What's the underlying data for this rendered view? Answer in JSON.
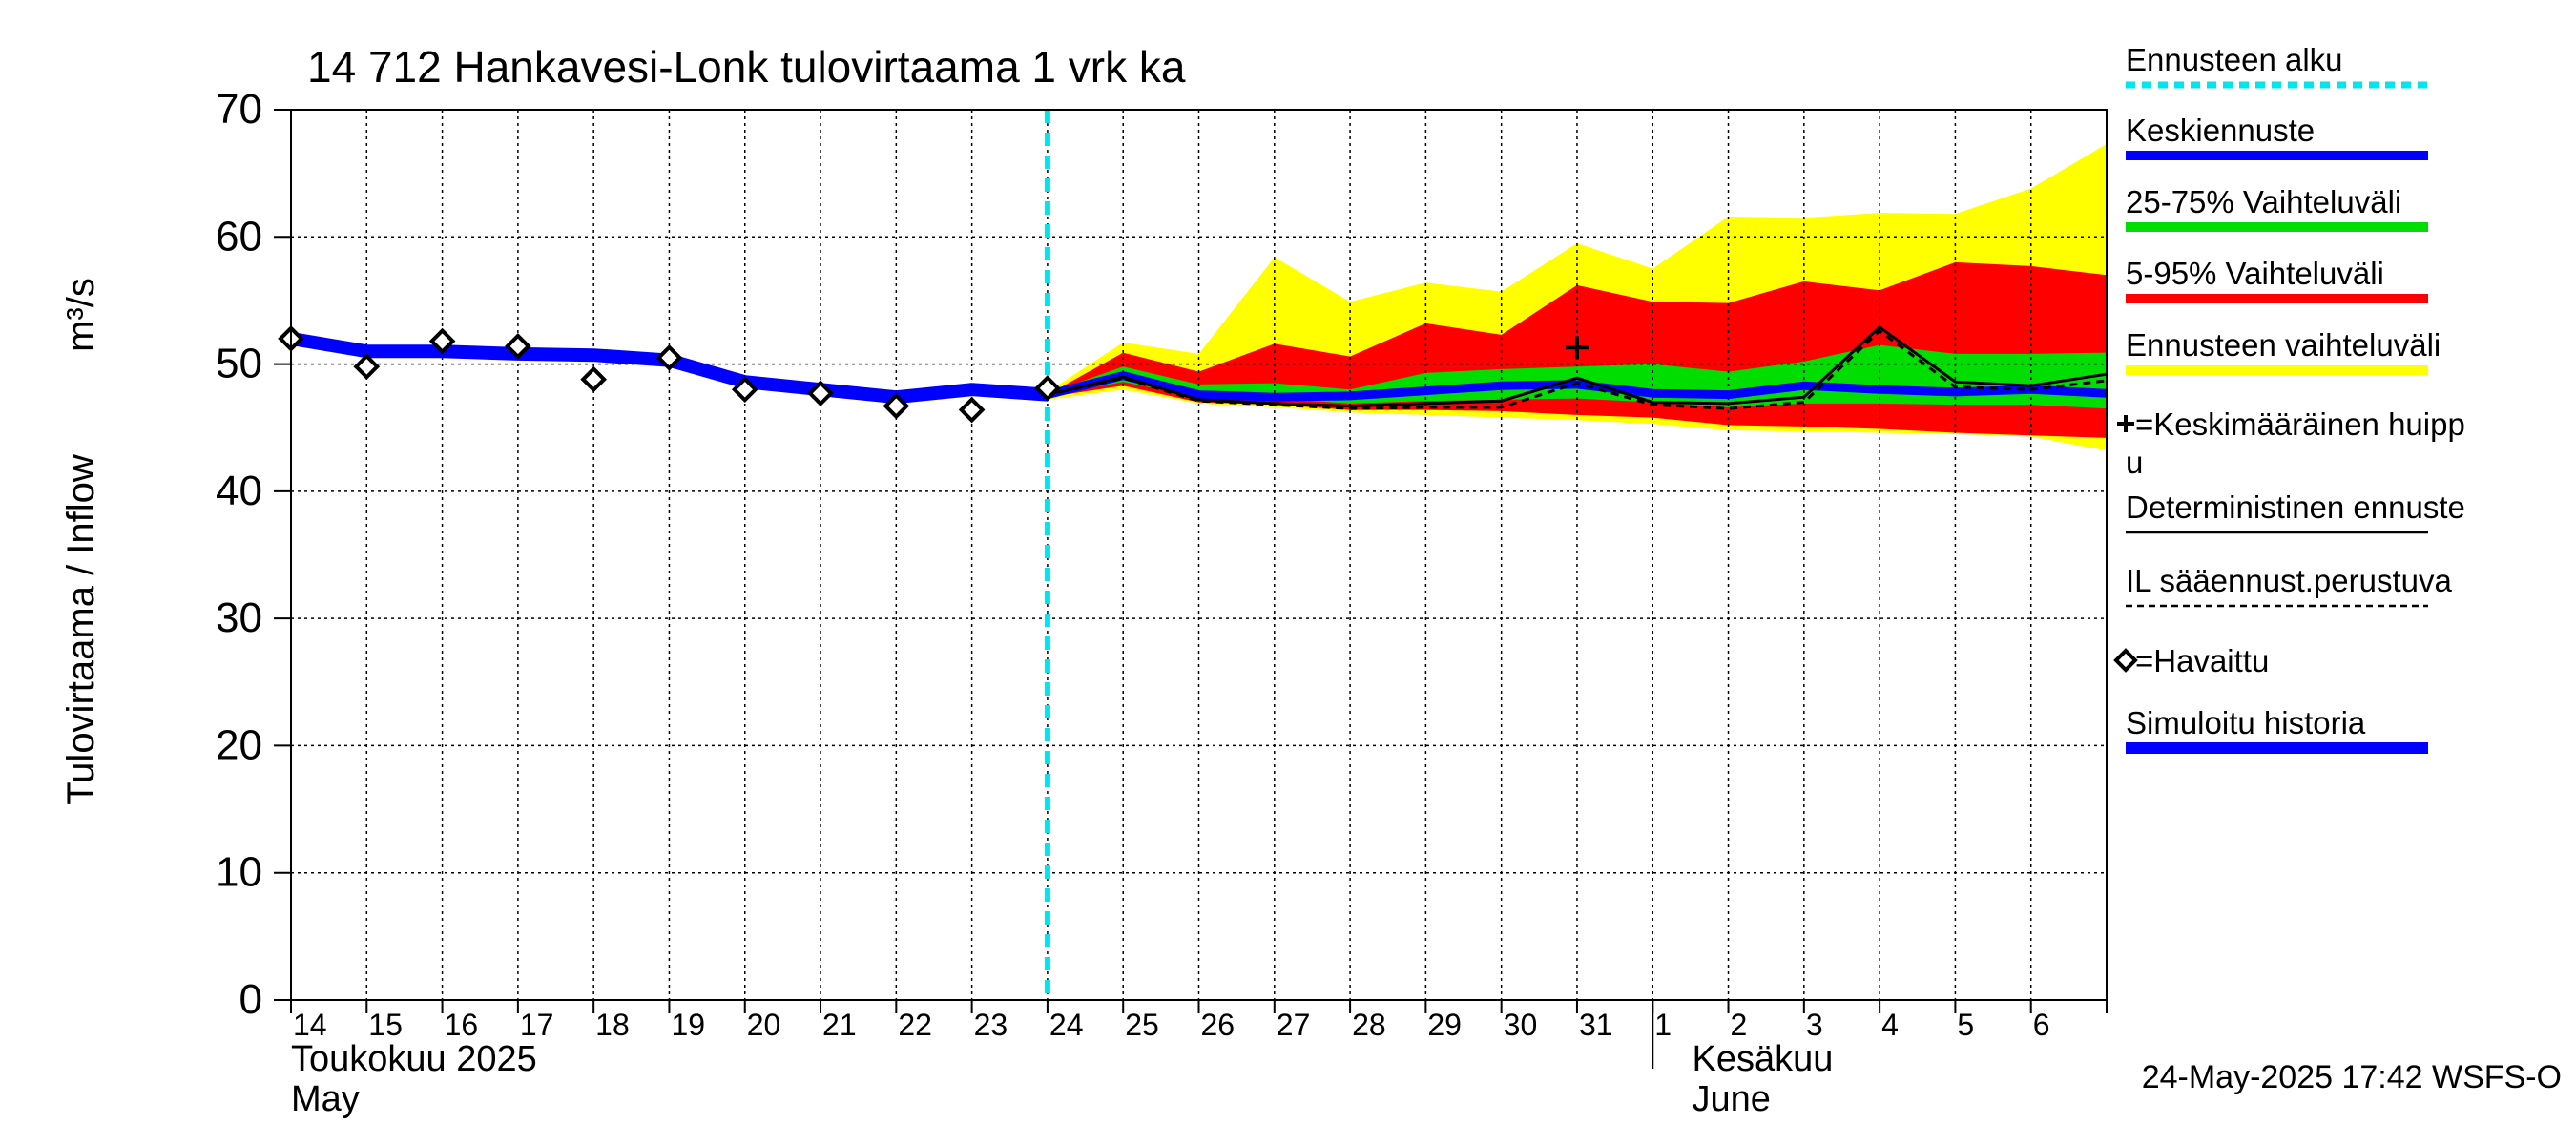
{
  "chart_data": {
    "type": "line",
    "title": "14 712 Hankavesi-Lonk tulovirtaama 1 vrk ka",
    "ylabel": "Tulovirtaama / Inflow",
    "yunit": "m³/s",
    "ylim": [
      0,
      70
    ],
    "yticks": [
      0,
      10,
      20,
      30,
      40,
      50,
      60,
      70
    ],
    "xlim": [
      "2025-05-14",
      "2025-06-07"
    ],
    "x_tick_labels": [
      "14",
      "15",
      "16",
      "17",
      "18",
      "19",
      "20",
      "21",
      "22",
      "23",
      "24",
      "25",
      "26",
      "27",
      "28",
      "29",
      "30",
      "31",
      "1",
      "2",
      "3",
      "4",
      "5",
      "6"
    ],
    "month_labels": [
      {
        "fi": "Toukokuu  2025",
        "en": "May"
      },
      {
        "fi": "Kesäkuu",
        "en": "June"
      }
    ],
    "grid": true,
    "forecast_start": "2025-05-24",
    "timestamp": "24-May-2025 17:42 WSFS-O",
    "legend": [
      {
        "label": "Ennusteen alku",
        "color": "#00e5ee",
        "style": "dotted"
      },
      {
        "label": "Keskiennuste",
        "color": "#0000ff",
        "style": "solid"
      },
      {
        "label": "25-75% Vaihteluväli",
        "color": "#00dd00",
        "style": "solid"
      },
      {
        "label": "5-95% Vaihteluväli",
        "color": "#ff0000",
        "style": "solid"
      },
      {
        "label": "Ennusteen vaihteluväli",
        "color": "#ffff00",
        "style": "solid"
      },
      {
        "label": "=Keskimääräinen huipp",
        "label2": "u",
        "color": "#000000",
        "style": "plus"
      },
      {
        "label": "Deterministinen ennuste",
        "color": "#000000",
        "style": "thin"
      },
      {
        "label": "IL sääennust.perustuva",
        "color": "#000000",
        "style": "dashed"
      },
      {
        "label": "=Havaittu",
        "color": "#000000",
        "style": "diamond"
      },
      {
        "label": "Simuloitu historia",
        "color": "#0000ff",
        "style": "thick"
      }
    ],
    "observed": {
      "x": [
        "2025-05-14",
        "2025-05-15",
        "2025-05-16",
        "2025-05-17",
        "2025-05-18",
        "2025-05-19",
        "2025-05-20",
        "2025-05-21",
        "2025-05-22",
        "2025-05-23",
        "2025-05-24"
      ],
      "y": [
        52.0,
        49.8,
        51.8,
        51.4,
        48.8,
        50.5,
        48.0,
        47.7,
        46.7,
        46.4,
        48.1
      ]
    },
    "simulated_history": {
      "x": [
        "2025-05-14",
        "2025-05-15",
        "2025-05-16",
        "2025-05-17",
        "2025-05-18",
        "2025-05-19",
        "2025-05-20",
        "2025-05-21",
        "2025-05-22",
        "2025-05-23",
        "2025-05-24"
      ],
      "y": [
        52.0,
        51.0,
        51.0,
        50.8,
        50.7,
        50.3,
        48.6,
        48.0,
        47.4,
        48.0,
        47.6
      ]
    },
    "forecast": {
      "x": [
        "2025-05-24",
        "2025-05-25",
        "2025-05-26",
        "2025-05-27",
        "2025-05-28",
        "2025-05-29",
        "2025-05-30",
        "2025-05-31",
        "2025-06-01",
        "2025-06-02",
        "2025-06-03",
        "2025-06-04",
        "2025-06-05",
        "2025-06-06",
        "2025-06-07"
      ],
      "min": [
        47.2,
        48.0,
        46.9,
        46.6,
        46.2,
        46.0,
        45.8,
        45.6,
        45.3,
        44.8,
        44.7,
        44.6,
        44.5,
        44.3,
        43.2
      ],
      "max": [
        47.8,
        51.7,
        50.8,
        58.4,
        54.9,
        56.4,
        55.7,
        59.5,
        57.5,
        61.6,
        61.5,
        61.9,
        61.8,
        63.8,
        67.3
      ],
      "p5": [
        47.4,
        48.3,
        47.0,
        46.8,
        46.4,
        46.4,
        46.3,
        46.0,
        45.8,
        45.2,
        45.1,
        44.9,
        44.6,
        44.4,
        44.2
      ],
      "p95": [
        47.6,
        50.9,
        49.4,
        51.6,
        50.6,
        53.2,
        52.3,
        56.2,
        54.9,
        54.8,
        56.5,
        55.8,
        58.0,
        57.7,
        57.0
      ],
      "p25": [
        47.5,
        48.6,
        47.4,
        47.3,
        46.9,
        47.1,
        47.2,
        47.3,
        47.0,
        46.6,
        46.9,
        46.9,
        46.8,
        46.8,
        46.5
      ],
      "p75": [
        47.7,
        49.8,
        48.4,
        48.5,
        48.0,
        49.3,
        49.6,
        49.8,
        50.0,
        49.4,
        50.2,
        51.5,
        50.8,
        50.8,
        50.9
      ],
      "median": [
        47.6,
        49.1,
        47.6,
        47.4,
        47.5,
        47.9,
        48.3,
        48.4,
        47.7,
        47.6,
        48.3,
        48.0,
        47.8,
        48.0,
        47.7
      ],
      "deterministic": [
        47.6,
        49.0,
        47.2,
        46.9,
        46.7,
        46.9,
        47.1,
        48.9,
        47.0,
        46.9,
        47.4,
        52.9,
        48.6,
        48.3,
        49.2
      ],
      "il_weather": [
        47.6,
        48.9,
        47.1,
        46.8,
        46.5,
        46.6,
        46.6,
        48.5,
        46.8,
        46.5,
        47.0,
        52.6,
        48.2,
        48.0,
        48.7
      ]
    },
    "mean_peak": {
      "x": "2025-05-31",
      "y": 51.3
    }
  }
}
